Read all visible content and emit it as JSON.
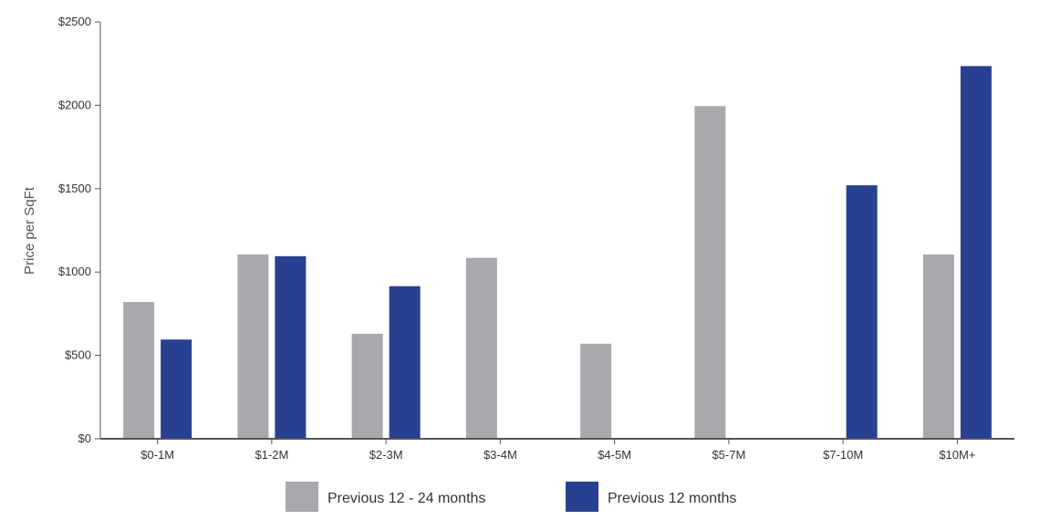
{
  "chart_data": {
    "type": "bar",
    "title": "",
    "xlabel": "",
    "ylabel": "Price per SqFt",
    "ylim": [
      0,
      2500
    ],
    "yticks": [
      0,
      500,
      1000,
      1500,
      2000,
      2500
    ],
    "ytick_labels": [
      "$0",
      "$500",
      "$1000",
      "$1500",
      "$2000",
      "$2500"
    ],
    "categories": [
      "$0-1M",
      "$1-2M",
      "$2-3M",
      "$3-4M",
      "$4-5M",
      "$5-7M",
      "$7-10M",
      "$10M+"
    ],
    "series": [
      {
        "name": "Previous 12 - 24 months",
        "color": "#a7a9ac",
        "values": [
          820,
          1105,
          630,
          1085,
          570,
          1995,
          null,
          1105
        ]
      },
      {
        "name": "Previous 12 months",
        "color": "#27408f",
        "values": [
          595,
          1095,
          915,
          null,
          null,
          null,
          1520,
          2235
        ]
      }
    ],
    "grid": false,
    "legend_position": "bottom"
  }
}
